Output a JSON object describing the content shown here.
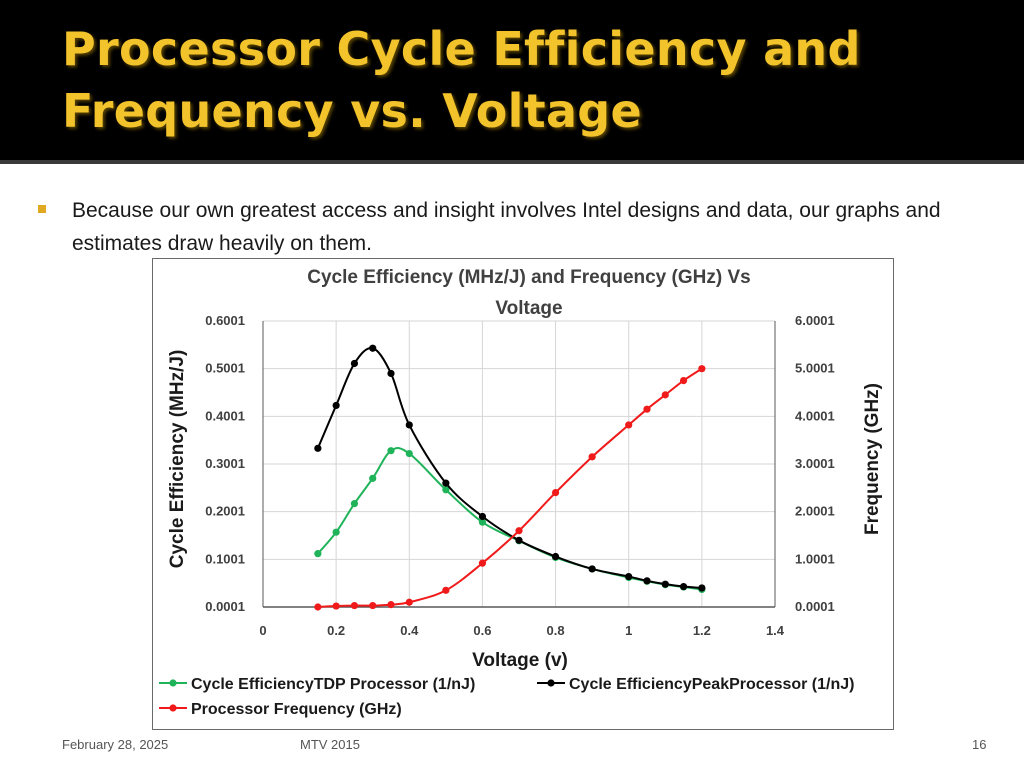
{
  "slide": {
    "title": "Processor Cycle Efficiency and Frequency vs. Voltage",
    "bullet_text": "Because our own greatest access and insight involves Intel designs and data, our graphs and estimates draw heavily on them.",
    "footer_date": "February 28, 2025",
    "footer_center": "MTV 2015",
    "page_number": "16"
  },
  "colors": {
    "title": "#f2c32b",
    "green": "#1fb35a",
    "black": "#000000",
    "red": "#f01a1a"
  },
  "chart_data": {
    "type": "line",
    "title": "Cycle Efficiency (MHz/J) and Frequency (GHz) Vs Voltage",
    "xlabel": "Voltage (v)",
    "ylabel": "Cycle Efficiency (MHz/J)",
    "y2label": "Frequency (GHz)",
    "xlim": [
      0,
      1.4
    ],
    "ylim": [
      0.0001,
      0.6001
    ],
    "y2lim": [
      0.0001,
      6.0001
    ],
    "x_ticks": [
      "0",
      "0.2",
      "0.4",
      "0.6",
      "0.8",
      "1",
      "1.2",
      "1.4"
    ],
    "y_ticks": [
      "0.0001",
      "0.1001",
      "0.2001",
      "0.3001",
      "0.4001",
      "0.5001",
      "0.6001"
    ],
    "y2_ticks": [
      "0.0001",
      "1.0001",
      "2.0001",
      "3.0001",
      "4.0001",
      "5.0001",
      "6.0001"
    ],
    "legend": "bottom",
    "series": [
      {
        "name": "Cycle EfficiencyTDP Processor (1/nJ)",
        "axis": "left",
        "color": "#1fb35a",
        "x": [
          0.15,
          0.2,
          0.25,
          0.3,
          0.35,
          0.4,
          0.5,
          0.6,
          0.7,
          0.8,
          0.9,
          1.0,
          1.05,
          1.1,
          1.15,
          1.2
        ],
        "y": [
          0.112,
          0.157,
          0.217,
          0.27,
          0.328,
          0.322,
          0.246,
          0.178,
          0.139,
          0.104,
          0.08,
          0.062,
          0.054,
          0.047,
          0.042,
          0.037
        ]
      },
      {
        "name": "Cycle EfficiencyPeakProcessor (1/nJ)",
        "axis": "left",
        "color": "#000000",
        "x": [
          0.15,
          0.2,
          0.25,
          0.3,
          0.35,
          0.4,
          0.5,
          0.6,
          0.7,
          0.8,
          0.9,
          1.0,
          1.05,
          1.1,
          1.15,
          1.2
        ],
        "y": [
          0.333,
          0.423,
          0.511,
          0.543,
          0.49,
          0.382,
          0.26,
          0.19,
          0.14,
          0.106,
          0.08,
          0.064,
          0.055,
          0.048,
          0.043,
          0.04
        ]
      },
      {
        "name": "Processor Frequency (GHz)",
        "axis": "right",
        "color": "#f01a1a",
        "x": [
          0.15,
          0.2,
          0.25,
          0.3,
          0.35,
          0.4,
          0.5,
          0.6,
          0.7,
          0.8,
          0.9,
          1.0,
          1.05,
          1.1,
          1.15,
          1.2
        ],
        "y": [
          0.0,
          0.02,
          0.03,
          0.03,
          0.05,
          0.1,
          0.35,
          0.92,
          1.6,
          2.4,
          3.15,
          3.82,
          4.15,
          4.45,
          4.75,
          5.0
        ]
      }
    ]
  }
}
